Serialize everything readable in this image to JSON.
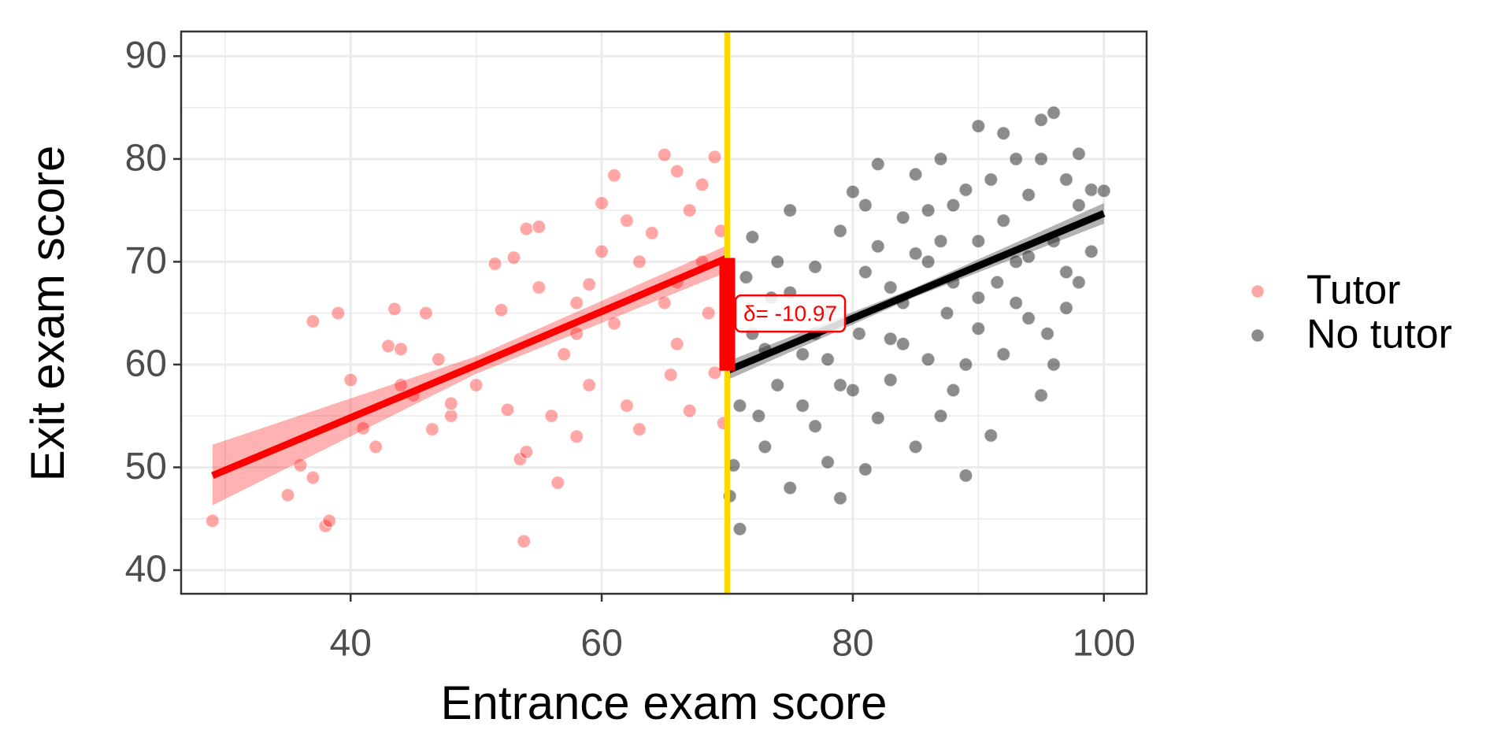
{
  "chart_data": {
    "type": "scatter",
    "x_label": "Entrance exam score",
    "y_label": "Exit exam score",
    "xlim": [
      26.5,
      103.4
    ],
    "ylim": [
      37.7,
      92.4
    ],
    "xticks": [
      40,
      60,
      80,
      100
    ],
    "yticks": [
      40,
      50,
      60,
      70,
      80,
      90
    ],
    "x_minor_grid": [
      30,
      50,
      70,
      90
    ],
    "y_minor_grid": [
      45,
      55,
      65,
      75,
      85
    ],
    "grid": true,
    "legend_position": "right",
    "series": [
      {
        "name": "Tutor",
        "color": "#ff0000",
        "x": [
          29,
          35,
          36,
          37,
          37,
          38,
          38.3,
          39,
          40,
          41,
          42,
          43,
          43.5,
          44,
          44,
          46,
          46.5,
          47,
          48,
          51.5,
          52,
          52.5,
          53,
          53.5,
          53.8,
          54,
          54,
          55,
          55,
          56,
          56.5,
          57,
          58,
          58,
          59,
          59,
          60,
          60,
          61,
          61,
          62,
          63,
          63,
          64,
          65,
          65,
          65.5,
          66,
          66,
          67,
          67,
          68,
          68,
          68.5,
          69,
          69,
          69.5,
          69.7,
          66,
          62,
          58,
          50,
          45,
          48
        ],
        "values": [
          44.8,
          47.3,
          50.2,
          49,
          64.2,
          44.3,
          44.8,
          65,
          58.5,
          53.8,
          52,
          61.8,
          65.4,
          61.5,
          58,
          65,
          53.7,
          60.5,
          55,
          69.8,
          65.3,
          55.6,
          70.4,
          50.8,
          42.8,
          73.2,
          51.5,
          73.4,
          67.5,
          55,
          48.5,
          61,
          66,
          53,
          67.8,
          58,
          75.7,
          71,
          78.4,
          64,
          56,
          70,
          53.7,
          72.8,
          80.4,
          66,
          59,
          78.8,
          62,
          75,
          55.5,
          77.5,
          70,
          65,
          80.2,
          59.2,
          73,
          54.3,
          68,
          74,
          63,
          58,
          57,
          56.2
        ]
      },
      {
        "name": "No tutor",
        "color": "#000000",
        "x": [
          70.2,
          71,
          70.5,
          71,
          72,
          72,
          73,
          73.5,
          74,
          75,
          75,
          76,
          77,
          77,
          78,
          78,
          79,
          79,
          80,
          80,
          80.5,
          81,
          81,
          82,
          82,
          83,
          83,
          84,
          84,
          85,
          85,
          86,
          86,
          87,
          87,
          87.5,
          88,
          88,
          89,
          89,
          90,
          90,
          90,
          91,
          91,
          91.5,
          92,
          92,
          93,
          93,
          94,
          94,
          95,
          95,
          95.5,
          96,
          96,
          96,
          97,
          97,
          98,
          98,
          99,
          99,
          100,
          74,
          76,
          78,
          82,
          84,
          86,
          88,
          90,
          92,
          94,
          97,
          73,
          75,
          77,
          79,
          81,
          83,
          85,
          87,
          89,
          93,
          95,
          98,
          71.5,
          72.5
        ],
        "values": [
          47.2,
          44,
          50.2,
          56,
          72.4,
          63,
          52,
          66.5,
          58,
          75,
          48,
          61,
          69.5,
          54,
          65,
          50.5,
          47,
          73,
          76.8,
          57.5,
          63,
          49.8,
          69,
          79.5,
          54.8,
          67.5,
          58.5,
          74.3,
          62,
          52,
          78.5,
          70,
          60.5,
          80,
          55,
          65,
          75.5,
          68,
          49.2,
          60,
          83.2,
          72,
          63.5,
          78,
          53.1,
          68,
          82.5,
          74,
          80,
          66,
          70.5,
          76.5,
          57,
          83.8,
          63,
          84.5,
          72,
          60,
          78,
          69,
          75.5,
          68,
          71,
          77,
          76.9,
          70,
          56,
          60.5,
          71.5,
          66,
          75,
          57.5,
          66.5,
          61,
          64.5,
          65.5,
          61.5,
          67,
          63,
          58,
          75.5,
          62.5,
          70.8,
          72,
          77,
          70,
          80,
          80.5,
          68.5,
          55
        ]
      }
    ],
    "fits": [
      {
        "color": "#ff0000",
        "x": [
          29,
          50,
          70
        ],
        "values": [
          49.2,
          59.95,
          70.37
        ],
        "ci_lower": [
          46.3,
          59.1,
          69.0
        ],
        "ci_upper": [
          52.2,
          60.8,
          71.6
        ]
      },
      {
        "color": "#000000",
        "x": [
          70,
          85,
          100
        ],
        "values": [
          59.4,
          67.05,
          74.7
        ],
        "ci_lower": [
          58.5,
          66.6,
          73.7
        ],
        "ci_upper": [
          60.3,
          67.5,
          75.7
        ]
      }
    ],
    "cutoff": {
      "value": 70,
      "color": "#ffd700"
    },
    "delta": {
      "label": "δ= -10.97",
      "color": "#ff0000",
      "y": [
        59.4,
        70.37
      ]
    }
  }
}
